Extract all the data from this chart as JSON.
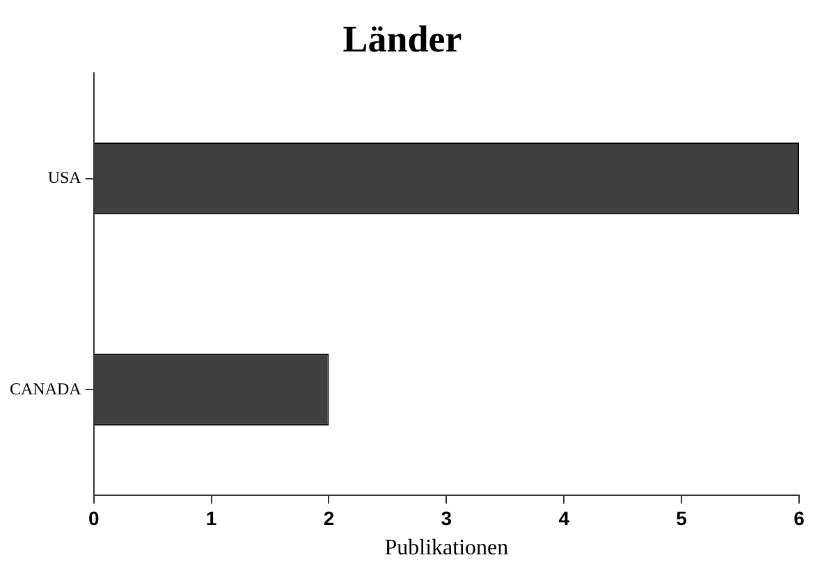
{
  "chart_data": {
    "type": "bar",
    "orientation": "horizontal",
    "title": "Länder",
    "xlabel": "Publikationen",
    "categories": [
      "USA",
      "CANADA"
    ],
    "values": [
      6,
      2
    ],
    "color": "#404040",
    "xlim": [
      0,
      6
    ],
    "xticks": [
      0,
      1,
      2,
      3,
      4,
      5,
      6
    ],
    "grid": false,
    "legend": false
  }
}
